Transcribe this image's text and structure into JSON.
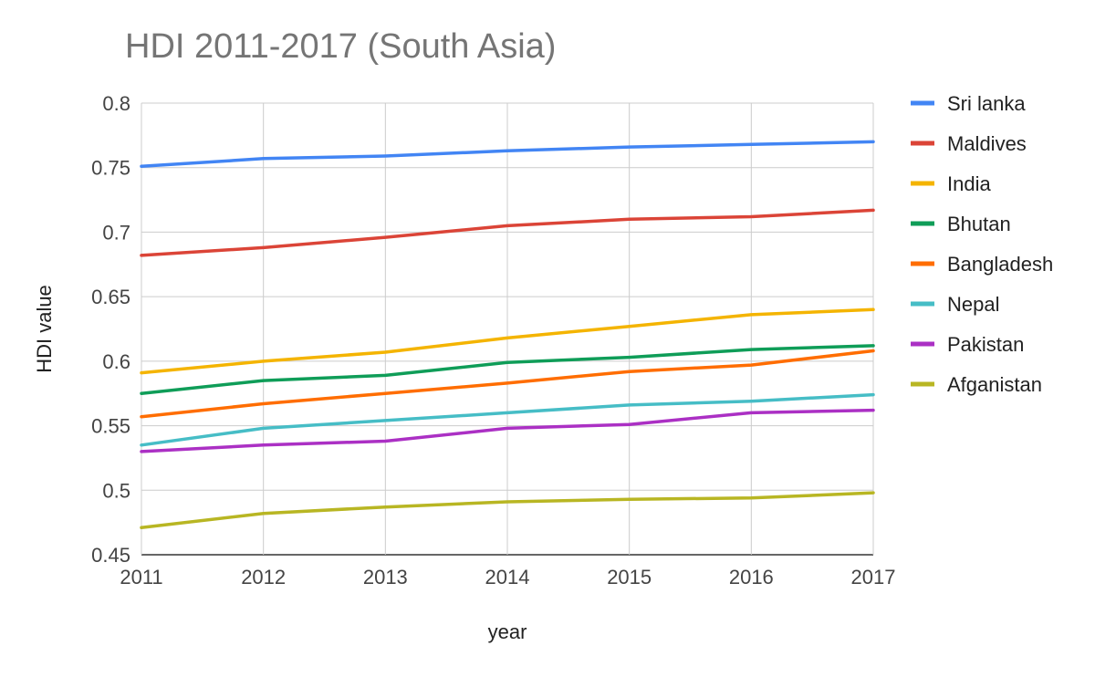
{
  "chart_data": {
    "type": "line",
    "title": "HDI 2011-2017 (South Asia)",
    "xlabel": "year",
    "ylabel": "HDI value",
    "x": [
      2011,
      2012,
      2013,
      2014,
      2015,
      2016,
      2017
    ],
    "x_tick_labels": [
      "2011",
      "2012",
      "2013",
      "2014",
      "2015",
      "2016",
      "2017"
    ],
    "ylim": [
      0.45,
      0.8
    ],
    "y_ticks": [
      0.45,
      0.5,
      0.55,
      0.6,
      0.65,
      0.7,
      0.75,
      0.8
    ],
    "y_tick_labels": [
      "0.45",
      "0.5",
      "0.55",
      "0.6",
      "0.65",
      "0.7",
      "0.75",
      "0.8"
    ],
    "grid": true,
    "legend_position": "right",
    "series": [
      {
        "name": "Sri lanka",
        "color": "#4285F4",
        "values": [
          0.751,
          0.757,
          0.759,
          0.763,
          0.766,
          0.768,
          0.77
        ]
      },
      {
        "name": "Maldives",
        "color": "#DB4437",
        "values": [
          0.682,
          0.688,
          0.696,
          0.705,
          0.71,
          0.712,
          0.717
        ]
      },
      {
        "name": "India",
        "color": "#F4B400",
        "values": [
          0.591,
          0.6,
          0.607,
          0.618,
          0.627,
          0.636,
          0.64
        ]
      },
      {
        "name": "Bhutan",
        "color": "#0F9D58",
        "values": [
          0.575,
          0.585,
          0.589,
          0.599,
          0.603,
          0.609,
          0.612
        ]
      },
      {
        "name": "Bangladesh",
        "color": "#FF6D00",
        "values": [
          0.557,
          0.567,
          0.575,
          0.583,
          0.592,
          0.597,
          0.608
        ]
      },
      {
        "name": "Nepal",
        "color": "#46BDC6",
        "values": [
          0.535,
          0.548,
          0.554,
          0.56,
          0.566,
          0.569,
          0.574
        ]
      },
      {
        "name": "Pakistan",
        "color": "#AB30C4",
        "values": [
          0.53,
          0.535,
          0.538,
          0.548,
          0.551,
          0.56,
          0.562
        ]
      },
      {
        "name": "Afganistan",
        "color": "#B8B623",
        "values": [
          0.471,
          0.482,
          0.487,
          0.491,
          0.493,
          0.494,
          0.498
        ]
      }
    ]
  }
}
